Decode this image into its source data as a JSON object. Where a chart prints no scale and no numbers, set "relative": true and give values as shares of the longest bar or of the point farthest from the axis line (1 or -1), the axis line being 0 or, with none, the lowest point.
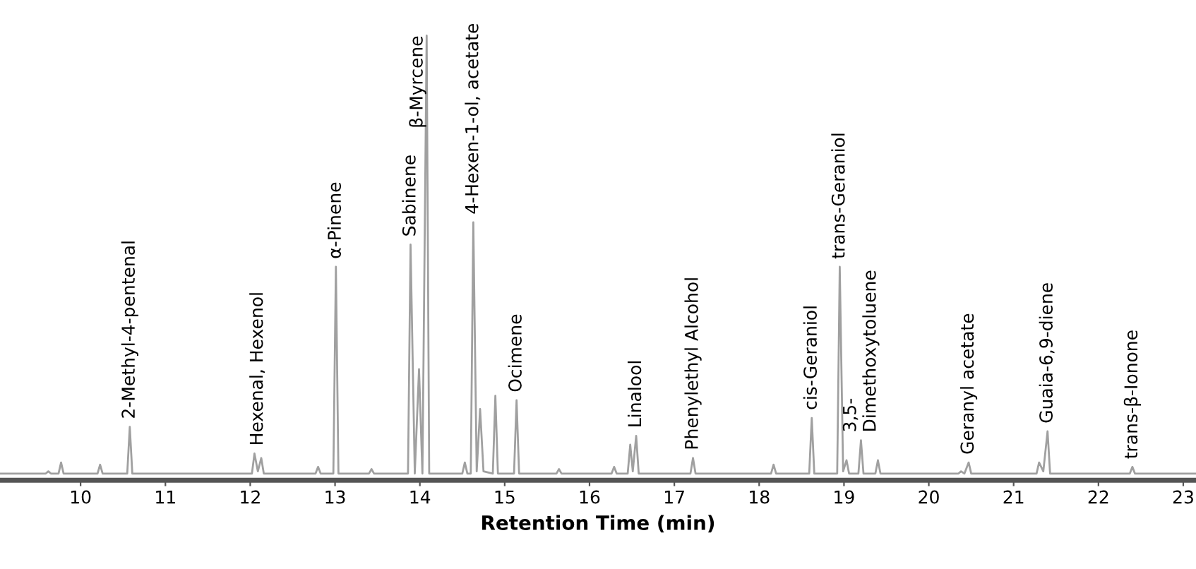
{
  "chart_data": {
    "type": "line",
    "relative": true,
    "xlabel": "Retention Time (min)",
    "xlim": [
      9.05,
      23.15
    ],
    "xticks": [
      10,
      11,
      12,
      13,
      14,
      15,
      16,
      17,
      18,
      19,
      20,
      21,
      22,
      23
    ],
    "grid": false,
    "legend": false,
    "marker": "none",
    "line_style": "solid",
    "series": [
      {
        "color": "#a0a0a0",
        "x": [
          9.05,
          9.59,
          9.62,
          9.65,
          9.74,
          9.77,
          9.8,
          10.2,
          10.23,
          10.26,
          10.55,
          10.58,
          10.61,
          12.02,
          12.05,
          12.09,
          12.13,
          12.16,
          12.77,
          12.8,
          12.83,
          12.98,
          13.01,
          13.04,
          13.4,
          13.43,
          13.46,
          13.86,
          13.89,
          13.94,
          13.99,
          14.03,
          14.08,
          14.11,
          14.5,
          14.53,
          14.56,
          14.6,
          14.63,
          14.67,
          14.71,
          14.75,
          14.86,
          14.89,
          14.92,
          15.11,
          15.14,
          15.17,
          15.61,
          15.64,
          15.67,
          16.26,
          16.29,
          16.32,
          16.45,
          16.48,
          16.51,
          16.55,
          16.58,
          17.19,
          17.22,
          17.25,
          18.14,
          18.17,
          18.2,
          18.59,
          18.62,
          18.65,
          18.92,
          18.95,
          18.99,
          19.03,
          19.06,
          19.17,
          19.2,
          19.23,
          19.37,
          19.4,
          19.43,
          20.35,
          20.38,
          20.42,
          20.47,
          20.5,
          21.27,
          21.3,
          21.35,
          21.4,
          21.43,
          22.37,
          22.4,
          22.43,
          23.15
        ],
        "values": [
          0.015,
          0.015,
          0.02,
          0.015,
          0.015,
          0.04,
          0.015,
          0.015,
          0.035,
          0.015,
          0.015,
          0.12,
          0.015,
          0.015,
          0.06,
          0.02,
          0.05,
          0.015,
          0.015,
          0.03,
          0.015,
          0.015,
          0.48,
          0.015,
          0.015,
          0.025,
          0.015,
          0.015,
          0.53,
          0.015,
          0.25,
          0.015,
          1.0,
          0.015,
          0.015,
          0.04,
          0.015,
          0.015,
          0.58,
          0.02,
          0.16,
          0.02,
          0.015,
          0.19,
          0.015,
          0.015,
          0.18,
          0.015,
          0.015,
          0.025,
          0.015,
          0.015,
          0.03,
          0.015,
          0.015,
          0.08,
          0.02,
          0.1,
          0.015,
          0.015,
          0.05,
          0.015,
          0.015,
          0.035,
          0.015,
          0.015,
          0.14,
          0.015,
          0.015,
          0.48,
          0.02,
          0.045,
          0.015,
          0.015,
          0.09,
          0.015,
          0.015,
          0.045,
          0.015,
          0.015,
          0.02,
          0.015,
          0.04,
          0.015,
          0.015,
          0.04,
          0.02,
          0.11,
          0.015,
          0.015,
          0.03,
          0.015,
          0.015
        ]
      }
    ],
    "annotations": [
      {
        "text": "2-Methyl-4-pentenal",
        "x": 10.58,
        "y": 0.12
      },
      {
        "text": "Hexenal, Hexenol",
        "x": 12.09,
        "y": 0.06
      },
      {
        "text": "α-Pinene",
        "x": 13.01,
        "y": 0.48
      },
      {
        "text": "Sabinene",
        "x": 13.89,
        "y": 0.53
      },
      {
        "text": "β-Myrcene",
        "x": 14.08,
        "y": 1.0
      },
      {
        "text": "4-Hexen-1-ol, acetate",
        "x": 14.63,
        "y": 0.58
      },
      {
        "text": "Ocimene",
        "x": 15.14,
        "y": 0.18
      },
      {
        "text": "Linalool",
        "x": 16.55,
        "y": 0.1
      },
      {
        "text": "Phenylethyl Alcohol",
        "x": 17.22,
        "y": 0.05
      },
      {
        "text": "cis-Geraniol",
        "x": 18.62,
        "y": 0.14
      },
      {
        "text": "trans-Geraniol",
        "x": 18.95,
        "y": 0.48
      },
      {
        "text": "3,5-\nDimethoxytoluene",
        "x": 19.2,
        "y": 0.09
      },
      {
        "text": "Geranyl acetate",
        "x": 20.47,
        "y": 0.04
      },
      {
        "text": "Guaia-6,9-diene",
        "x": 21.4,
        "y": 0.11
      },
      {
        "text": "trans-β-Ionone",
        "x": 22.4,
        "y": 0.03
      }
    ]
  }
}
